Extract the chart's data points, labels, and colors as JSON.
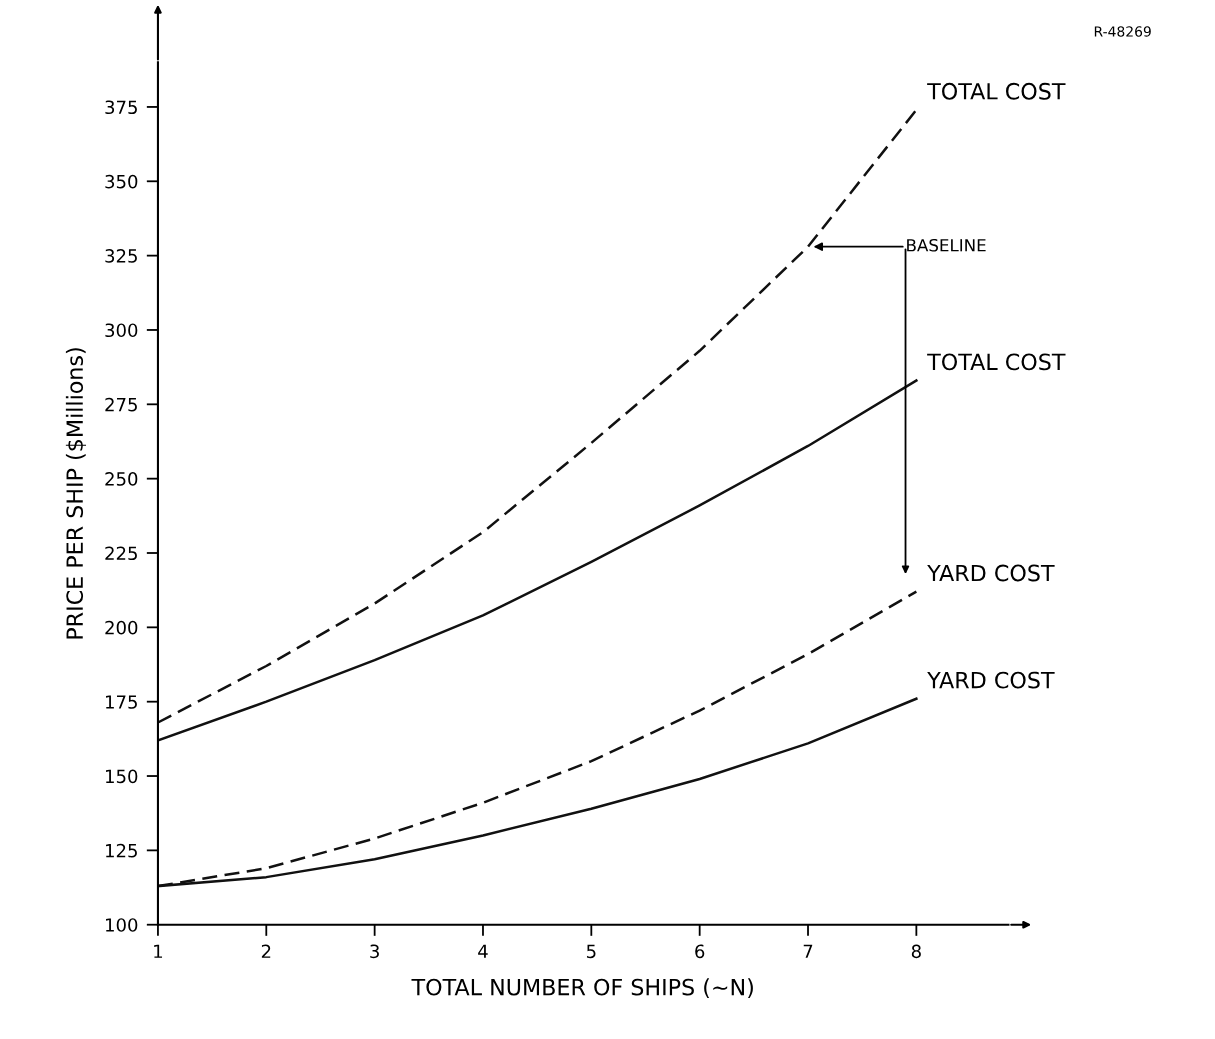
{
  "chart_data": {
    "type": "line",
    "xlabel": "TOTAL NUMBER OF SHIPS (~N)",
    "ylabel": "PRICE PER SHIP ($Millions)",
    "x": [
      1,
      2,
      3,
      4,
      5,
      6,
      7,
      8
    ],
    "series": [
      {
        "name": "TOTAL COST",
        "color": "#111111",
        "line_style": "dashed",
        "values": [
          168,
          187,
          208,
          232,
          262,
          293,
          328,
          374
        ]
      },
      {
        "name": "TOTAL COST",
        "color": "#111111",
        "line_style": "solid",
        "values": [
          162,
          175,
          189,
          204,
          222,
          241,
          261,
          283
        ]
      },
      {
        "name": "YARD COST",
        "color": "#111111",
        "line_style": "dashed",
        "values": [
          113,
          119,
          129,
          141,
          155,
          172,
          191,
          212
        ]
      },
      {
        "name": "YARD COST",
        "color": "#111111",
        "line_style": "solid",
        "values": [
          113,
          116,
          122,
          130,
          139,
          149,
          161,
          176
        ]
      }
    ],
    "xlim": [
      1,
      8.85
    ],
    "ylim": [
      100,
      390
    ],
    "xticks": [
      1,
      2,
      3,
      4,
      5,
      6,
      7,
      8
    ],
    "yticks": [
      100,
      125,
      150,
      175,
      200,
      225,
      250,
      275,
      300,
      325,
      350,
      375
    ],
    "grid": false,
    "legend": false,
    "marker": "none",
    "annotations": [
      {
        "text": "BASELINE",
        "x": 7,
        "y": 328
      },
      "R-48269"
    ]
  }
}
